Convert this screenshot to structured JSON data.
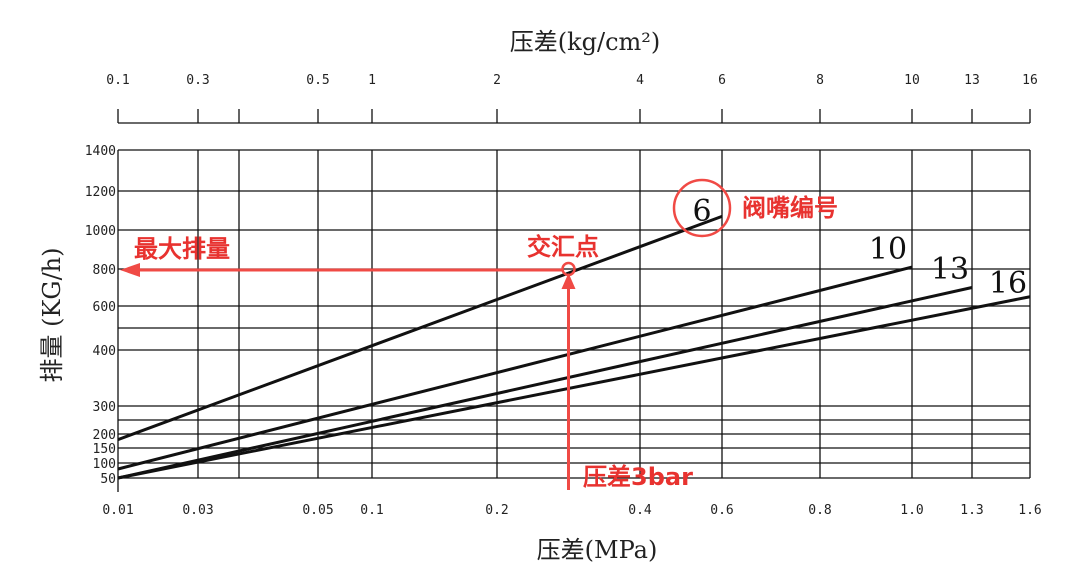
{
  "chart_data": {
    "type": "line",
    "title_top": "压差(kg/cm²)",
    "xlabel": "压差(MPa)",
    "ylabel": "排量 (KG/h)",
    "x_top_ticks": [
      {
        "label": "0.1",
        "value": 0.01
      },
      {
        "label": "0.3",
        "value": 0.03
      },
      {
        "label": "0.5",
        "value": 0.05
      },
      {
        "label": "1",
        "value": 0.1
      },
      {
        "label": "2",
        "value": 0.2
      },
      {
        "label": "4",
        "value": 0.4
      },
      {
        "label": "6",
        "value": 0.6
      },
      {
        "label": "8",
        "value": 0.8
      },
      {
        "label": "10",
        "value": 1.0
      },
      {
        "label": "13",
        "value": 1.3
      },
      {
        "label": "16",
        "value": 1.6
      }
    ],
    "x_bottom_ticks": [
      {
        "label": "0.01",
        "value": 0.01
      },
      {
        "label": "0.03",
        "value": 0.03
      },
      {
        "label": "0.05",
        "value": 0.05
      },
      {
        "label": "0.1",
        "value": 0.1
      },
      {
        "label": "0.2",
        "value": 0.2
      },
      {
        "label": "0.4",
        "value": 0.4
      },
      {
        "label": "0.6",
        "value": 0.6
      },
      {
        "label": "0.8",
        "value": 0.8
      },
      {
        "label": "1.0",
        "value": 1.0
      },
      {
        "label": "1.3",
        "value": 1.3
      },
      {
        "label": "1.6",
        "value": 1.6
      }
    ],
    "y_ticks": [
      {
        "label": "50",
        "value": 50
      },
      {
        "label": "100",
        "value": 100
      },
      {
        "label": "150",
        "value": 150
      },
      {
        "label": "200",
        "value": 200
      },
      {
        "label": "300",
        "value": 300
      },
      {
        "label": "400",
        "value": 400
      },
      {
        "label": "600",
        "value": 600
      },
      {
        "label": "800",
        "value": 800
      },
      {
        "label": "1000",
        "value": 1000
      },
      {
        "label": "1200",
        "value": 1200
      },
      {
        "label": "1400",
        "value": 1400
      }
    ],
    "extra_y_gridlines": [
      250,
      500
    ],
    "xlim": [
      0.01,
      1.6
    ],
    "ylim": [
      0,
      1400
    ],
    "grid": true,
    "series": [
      {
        "name": "6",
        "points": [
          [
            0.01,
            180
          ],
          [
            0.6,
            1070
          ]
        ]
      },
      {
        "name": "10",
        "points": [
          [
            0.01,
            80
          ],
          [
            1.0,
            810
          ]
        ]
      },
      {
        "name": "13",
        "points": [
          [
            0.01,
            50
          ],
          [
            1.3,
            700
          ]
        ]
      },
      {
        "name": "16",
        "points": [
          [
            0.01,
            50
          ],
          [
            1.6,
            650
          ]
        ]
      }
    ],
    "annotations": {
      "intersection_label": "交汇点",
      "intersection_point": [
        0.3,
        800
      ],
      "max_flow_label": "最大排量",
      "pressure_label": "压差3bar",
      "nozzle_label": "阀嘴编号",
      "colors": {
        "annotation": "#f04a45",
        "lines": "#111111"
      }
    }
  }
}
